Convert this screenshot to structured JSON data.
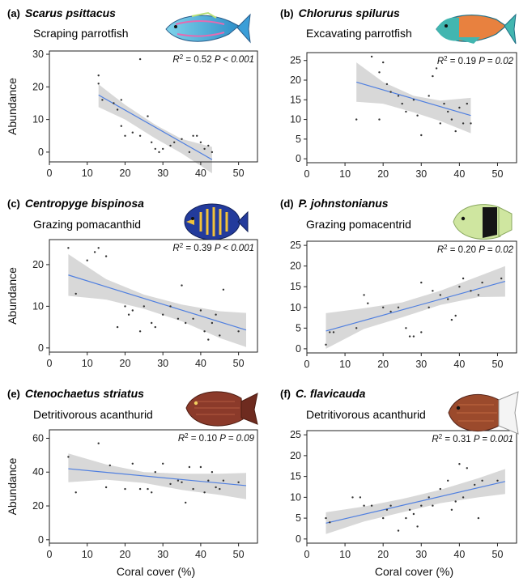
{
  "axis_titles": {
    "ylabel": "Abundance",
    "xlabel": "Coral cover (%)"
  },
  "colors": {
    "fit_line": "#4f7fe0",
    "ci_band": "#d4d4d4",
    "points": "#333333",
    "frame": "#222222"
  },
  "chart_data": [
    {
      "type": "scatter",
      "panel": "(a)",
      "species": "Scarus psittacus",
      "guild": "Scraping parrotfish",
      "fish_icon": "scarus-psittacus-fish-icon",
      "stat_r2": "0.52",
      "stat_p": "P < 0.001",
      "xlim": [
        0,
        55
      ],
      "ylim": [
        -3,
        31
      ],
      "x_ticks": [
        0,
        10,
        20,
        30,
        40,
        50
      ],
      "y_ticks": [
        0,
        10,
        20,
        30
      ],
      "ylabel": "Abundance",
      "xlabel": "",
      "fit": {
        "x": [
          13,
          43
        ],
        "y": [
          17.5,
          -2.3
        ]
      },
      "ci_upper": [
        [
          13,
          20.8
        ],
        [
          20,
          14.5
        ],
        [
          28,
          8.4
        ],
        [
          35,
          4.0
        ],
        [
          43,
          1.6
        ]
      ],
      "ci_lower": [
        [
          13,
          13.8
        ],
        [
          20,
          10.0
        ],
        [
          28,
          4.2
        ],
        [
          35,
          -0.4
        ],
        [
          43,
          -6.5
        ]
      ],
      "points": [
        [
          13,
          23.5
        ],
        [
          13,
          21
        ],
        [
          14,
          16
        ],
        [
          17,
          15
        ],
        [
          18,
          13
        ],
        [
          19,
          16
        ],
        [
          19,
          8
        ],
        [
          20,
          5
        ],
        [
          22,
          6
        ],
        [
          24,
          28.5
        ],
        [
          24,
          5
        ],
        [
          26,
          11
        ],
        [
          27,
          3
        ],
        [
          28,
          1
        ],
        [
          29,
          0
        ],
        [
          30,
          1
        ],
        [
          32,
          2
        ],
        [
          33,
          3
        ],
        [
          35,
          4
        ],
        [
          37,
          0
        ],
        [
          38,
          5
        ],
        [
          39,
          5
        ],
        [
          40,
          3
        ],
        [
          41,
          1
        ],
        [
          42,
          2
        ],
        [
          43,
          0
        ]
      ]
    },
    {
      "type": "scatter",
      "panel": "(b)",
      "species": "Chlorurus spilurus",
      "guild": "Excavating parrotfish",
      "fish_icon": "chlorurus-spilurus-fish-icon",
      "stat_r2": "0.19",
      "stat_p": "P = 0.02",
      "xlim": [
        0,
        55
      ],
      "ylim": [
        -1,
        27
      ],
      "x_ticks": [
        0,
        10,
        20,
        30,
        40,
        50
      ],
      "y_ticks": [
        0,
        5,
        10,
        15,
        20,
        25
      ],
      "ylabel": "",
      "xlabel": "",
      "fit": {
        "x": [
          13,
          43
        ],
        "y": [
          19.5,
          11
        ]
      },
      "ci_upper": [
        [
          13,
          24.5
        ],
        [
          20,
          19.5
        ],
        [
          28,
          16.0
        ],
        [
          35,
          14.8
        ],
        [
          43,
          15.5
        ]
      ],
      "ci_lower": [
        [
          13,
          14.5
        ],
        [
          20,
          14.0
        ],
        [
          28,
          11.8
        ],
        [
          35,
          9.6
        ],
        [
          43,
          6.5
        ]
      ],
      "points": [
        [
          13,
          10
        ],
        [
          17,
          26
        ],
        [
          19,
          10
        ],
        [
          19,
          22
        ],
        [
          20,
          24.5
        ],
        [
          21,
          19
        ],
        [
          22,
          17
        ],
        [
          24,
          16
        ],
        [
          25,
          14
        ],
        [
          26,
          12
        ],
        [
          28,
          15
        ],
        [
          29,
          11
        ],
        [
          30,
          6
        ],
        [
          32,
          16
        ],
        [
          33,
          21
        ],
        [
          34,
          23
        ],
        [
          35,
          9
        ],
        [
          36,
          14
        ],
        [
          37,
          12
        ],
        [
          38,
          10
        ],
        [
          39,
          7
        ],
        [
          40,
          13
        ],
        [
          41,
          9
        ],
        [
          42,
          14
        ],
        [
          43,
          9
        ]
      ]
    },
    {
      "type": "scatter",
      "panel": "(c)",
      "species": "Centropyge bispinosa",
      "guild": "Grazing pomacanthid",
      "fish_icon": "centropyge-bispinosa-fish-icon",
      "stat_r2": "0.39",
      "stat_p": "P < 0.001",
      "xlim": [
        0,
        55
      ],
      "ylim": [
        -1,
        26
      ],
      "x_ticks": [
        0,
        10,
        20,
        30,
        40,
        50
      ],
      "y_ticks": [
        0,
        10,
        20
      ],
      "ylabel": "Abundance",
      "xlabel": "",
      "fit": {
        "x": [
          5,
          52
        ],
        "y": [
          17.5,
          4.3
        ]
      },
      "ci_upper": [
        [
          5,
          22.5
        ],
        [
          15,
          16.5
        ],
        [
          25,
          12.8
        ],
        [
          35,
          10.4
        ],
        [
          45,
          8.8
        ],
        [
          52,
          8.4
        ]
      ],
      "ci_lower": [
        [
          5,
          12.5
        ],
        [
          15,
          11.6
        ],
        [
          25,
          9.4
        ],
        [
          35,
          6.4
        ],
        [
          45,
          2.4
        ],
        [
          52,
          0.2
        ]
      ],
      "points": [
        [
          5,
          24
        ],
        [
          7,
          13
        ],
        [
          10,
          21
        ],
        [
          12,
          23
        ],
        [
          13,
          24
        ],
        [
          15,
          22
        ],
        [
          18,
          5
        ],
        [
          20,
          10
        ],
        [
          21,
          8
        ],
        [
          22,
          9
        ],
        [
          24,
          4
        ],
        [
          25,
          10
        ],
        [
          27,
          6
        ],
        [
          28,
          5
        ],
        [
          30,
          8
        ],
        [
          32,
          10
        ],
        [
          34,
          7
        ],
        [
          35,
          15
        ],
        [
          36,
          6
        ],
        [
          38,
          7
        ],
        [
          40,
          9
        ],
        [
          41,
          4
        ],
        [
          42,
          2
        ],
        [
          43,
          6
        ],
        [
          44,
          8
        ],
        [
          45,
          3
        ],
        [
          46,
          14
        ],
        [
          50,
          4
        ]
      ]
    },
    {
      "type": "scatter",
      "panel": "(d)",
      "species": "P. johnstonianus",
      "guild": "Grazing pomacentrid",
      "fish_icon": "plectroglyphidodon-johnstonianus-fish-icon",
      "stat_r2": "0.20",
      "stat_p": "P = 0.02",
      "xlim": [
        0,
        55
      ],
      "ylim": [
        -1,
        26
      ],
      "x_ticks": [
        0,
        10,
        20,
        30,
        40,
        50
      ],
      "y_ticks": [
        0,
        5,
        10,
        15,
        20,
        25
      ],
      "ylabel": "",
      "xlabel": "",
      "fit": {
        "x": [
          5,
          52
        ],
        "y": [
          4.3,
          16.3
        ]
      },
      "ci_upper": [
        [
          5,
          8.6
        ],
        [
          15,
          9.8
        ],
        [
          25,
          11.2
        ],
        [
          35,
          14.0
        ],
        [
          45,
          17.5
        ],
        [
          52,
          20.0
        ]
      ],
      "ci_lower": [
        [
          5,
          0.0
        ],
        [
          15,
          4.8
        ],
        [
          25,
          7.6
        ],
        [
          35,
          10.6
        ],
        [
          45,
          12.5
        ],
        [
          52,
          12.6
        ]
      ],
      "points": [
        [
          5,
          1
        ],
        [
          6,
          4
        ],
        [
          7,
          4
        ],
        [
          13,
          5
        ],
        [
          15,
          13
        ],
        [
          16,
          11
        ],
        [
          20,
          10
        ],
        [
          22,
          9
        ],
        [
          24,
          10
        ],
        [
          26,
          5
        ],
        [
          27,
          3
        ],
        [
          28,
          3
        ],
        [
          30,
          4
        ],
        [
          30,
          16
        ],
        [
          32,
          10
        ],
        [
          33,
          14
        ],
        [
          35,
          13
        ],
        [
          37,
          12
        ],
        [
          38,
          7
        ],
        [
          39,
          8
        ],
        [
          40,
          15
        ],
        [
          41,
          17
        ],
        [
          43,
          14
        ],
        [
          45,
          13
        ],
        [
          46,
          16
        ],
        [
          51,
          17
        ]
      ]
    },
    {
      "type": "scatter",
      "panel": "(e)",
      "species": "Ctenochaetus striatus",
      "guild": "Detritivorous acanthurid",
      "fish_icon": "ctenochaetus-striatus-fish-icon",
      "stat_r2": "0.10",
      "stat_p": "P = 0.09",
      "xlim": [
        0,
        55
      ],
      "ylim": [
        -2,
        65
      ],
      "x_ticks": [
        0,
        10,
        20,
        30,
        40,
        50
      ],
      "y_ticks": [
        0,
        20,
        40,
        60
      ],
      "ylabel": "Abundance",
      "xlabel": "Coral cover (%)",
      "fit": {
        "x": [
          5,
          52
        ],
        "y": [
          42,
          32
        ]
      },
      "ci_upper": [
        [
          5,
          51
        ],
        [
          15,
          44.5
        ],
        [
          25,
          40.0
        ],
        [
          35,
          39.0
        ],
        [
          45,
          39.0
        ],
        [
          52,
          39.5
        ]
      ],
      "ci_lower": [
        [
          5,
          34
        ],
        [
          15,
          35.5
        ],
        [
          25,
          33.6
        ],
        [
          35,
          29.5
        ],
        [
          45,
          26.5
        ],
        [
          52,
          24.0
        ]
      ],
      "points": [
        [
          5,
          49
        ],
        [
          7,
          28
        ],
        [
          13,
          57
        ],
        [
          15,
          31
        ],
        [
          16,
          44
        ],
        [
          20,
          30
        ],
        [
          22,
          45
        ],
        [
          24,
          30
        ],
        [
          26,
          30
        ],
        [
          27,
          28
        ],
        [
          28,
          40
        ],
        [
          30,
          45
        ],
        [
          32,
          33
        ],
        [
          34,
          35
        ],
        [
          35,
          34
        ],
        [
          36,
          22
        ],
        [
          37,
          43
        ],
        [
          38,
          30
        ],
        [
          40,
          43
        ],
        [
          41,
          28
        ],
        [
          42,
          35
        ],
        [
          43,
          40
        ],
        [
          44,
          31
        ],
        [
          45,
          30
        ],
        [
          46,
          35
        ],
        [
          50,
          34
        ]
      ]
    },
    {
      "type": "scatter",
      "panel": "(f)",
      "species": "C. flavicauda",
      "guild": "Detritivorous acanthurid",
      "fish_icon": "ctenochaetus-flavicauda-fish-icon",
      "stat_r2": "0.31",
      "stat_p": "P = 0.001",
      "xlim": [
        0,
        55
      ],
      "ylim": [
        -1,
        26
      ],
      "x_ticks": [
        0,
        10,
        20,
        30,
        40,
        50
      ],
      "y_ticks": [
        0,
        5,
        10,
        15,
        20,
        25
      ],
      "ylabel": "",
      "xlabel": "Coral cover (%)",
      "fit": {
        "x": [
          5,
          52
        ],
        "y": [
          3.8,
          13.8
        ]
      },
      "ci_upper": [
        [
          5,
          6.4
        ],
        [
          15,
          7.8
        ],
        [
          25,
          9.6
        ],
        [
          35,
          11.8
        ],
        [
          45,
          14.6
        ],
        [
          52,
          16.8
        ]
      ],
      "ci_lower": [
        [
          5,
          1.2
        ],
        [
          15,
          4.2
        ],
        [
          25,
          6.4
        ],
        [
          35,
          8.6
        ],
        [
          45,
          10.0
        ],
        [
          52,
          10.8
        ]
      ],
      "points": [
        [
          5,
          5
        ],
        [
          6,
          4
        ],
        [
          12,
          10
        ],
        [
          14,
          10
        ],
        [
          15,
          8
        ],
        [
          17,
          8
        ],
        [
          20,
          5
        ],
        [
          21,
          7
        ],
        [
          22,
          8
        ],
        [
          24,
          2
        ],
        [
          26,
          5
        ],
        [
          27,
          7
        ],
        [
          28,
          6
        ],
        [
          29,
          3
        ],
        [
          30,
          8
        ],
        [
          32,
          10
        ],
        [
          33,
          8
        ],
        [
          35,
          12
        ],
        [
          37,
          14
        ],
        [
          38,
          7
        ],
        [
          39,
          9
        ],
        [
          40,
          18
        ],
        [
          41,
          10
        ],
        [
          42,
          17
        ],
        [
          44,
          13
        ],
        [
          45,
          5
        ],
        [
          46,
          14
        ],
        [
          50,
          14
        ]
      ]
    }
  ]
}
